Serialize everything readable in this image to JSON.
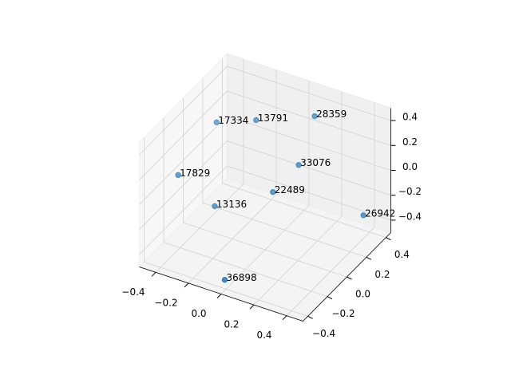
{
  "chart_data": {
    "type": "scatter3d",
    "x": [
      -0.35,
      -0.15,
      0.13,
      0.08,
      -0.4,
      0,
      -0.26,
      0.38,
      -0.02
    ],
    "y": [
      0.09,
      0.16,
      0.29,
      0.21,
      -0.22,
      0.08,
      -0.08,
      0.37,
      -0.38
    ],
    "z": [
      0.3,
      0.35,
      0.4,
      0.05,
      0.1,
      -0.1,
      -0.2,
      -0.35,
      -0.45
    ],
    "labels": [
      "17334",
      "13791",
      "28359",
      "33076",
      "17829",
      "22489",
      "13136",
      "26942",
      "36898"
    ],
    "color": "#1f77b4",
    "xlim": [
      -0.5,
      0.5
    ],
    "ylim": [
      -0.45,
      0.45
    ],
    "zlim": [
      -0.5,
      0.5
    ],
    "xticks": [
      {
        "value": -0.4,
        "label": "−0.4"
      },
      {
        "value": -0.2,
        "label": "−0.2"
      },
      {
        "value": 0,
        "label": "0.0"
      },
      0.2,
      0.4
    ],
    "yticks": [
      {
        "value": -0.4,
        "label": "−0.4"
      },
      {
        "value": -0.2,
        "label": "−0.2"
      },
      {
        "value": 0,
        "label": "0.0"
      },
      0.2,
      0.4
    ],
    "zticks": [
      {
        "value": -0.4,
        "label": "−0.4"
      },
      {
        "value": -0.2,
        "label": "−0.2"
      },
      {
        "value": 0,
        "label": "0.0"
      },
      0.2,
      0.4
    ],
    "grid": true
  }
}
